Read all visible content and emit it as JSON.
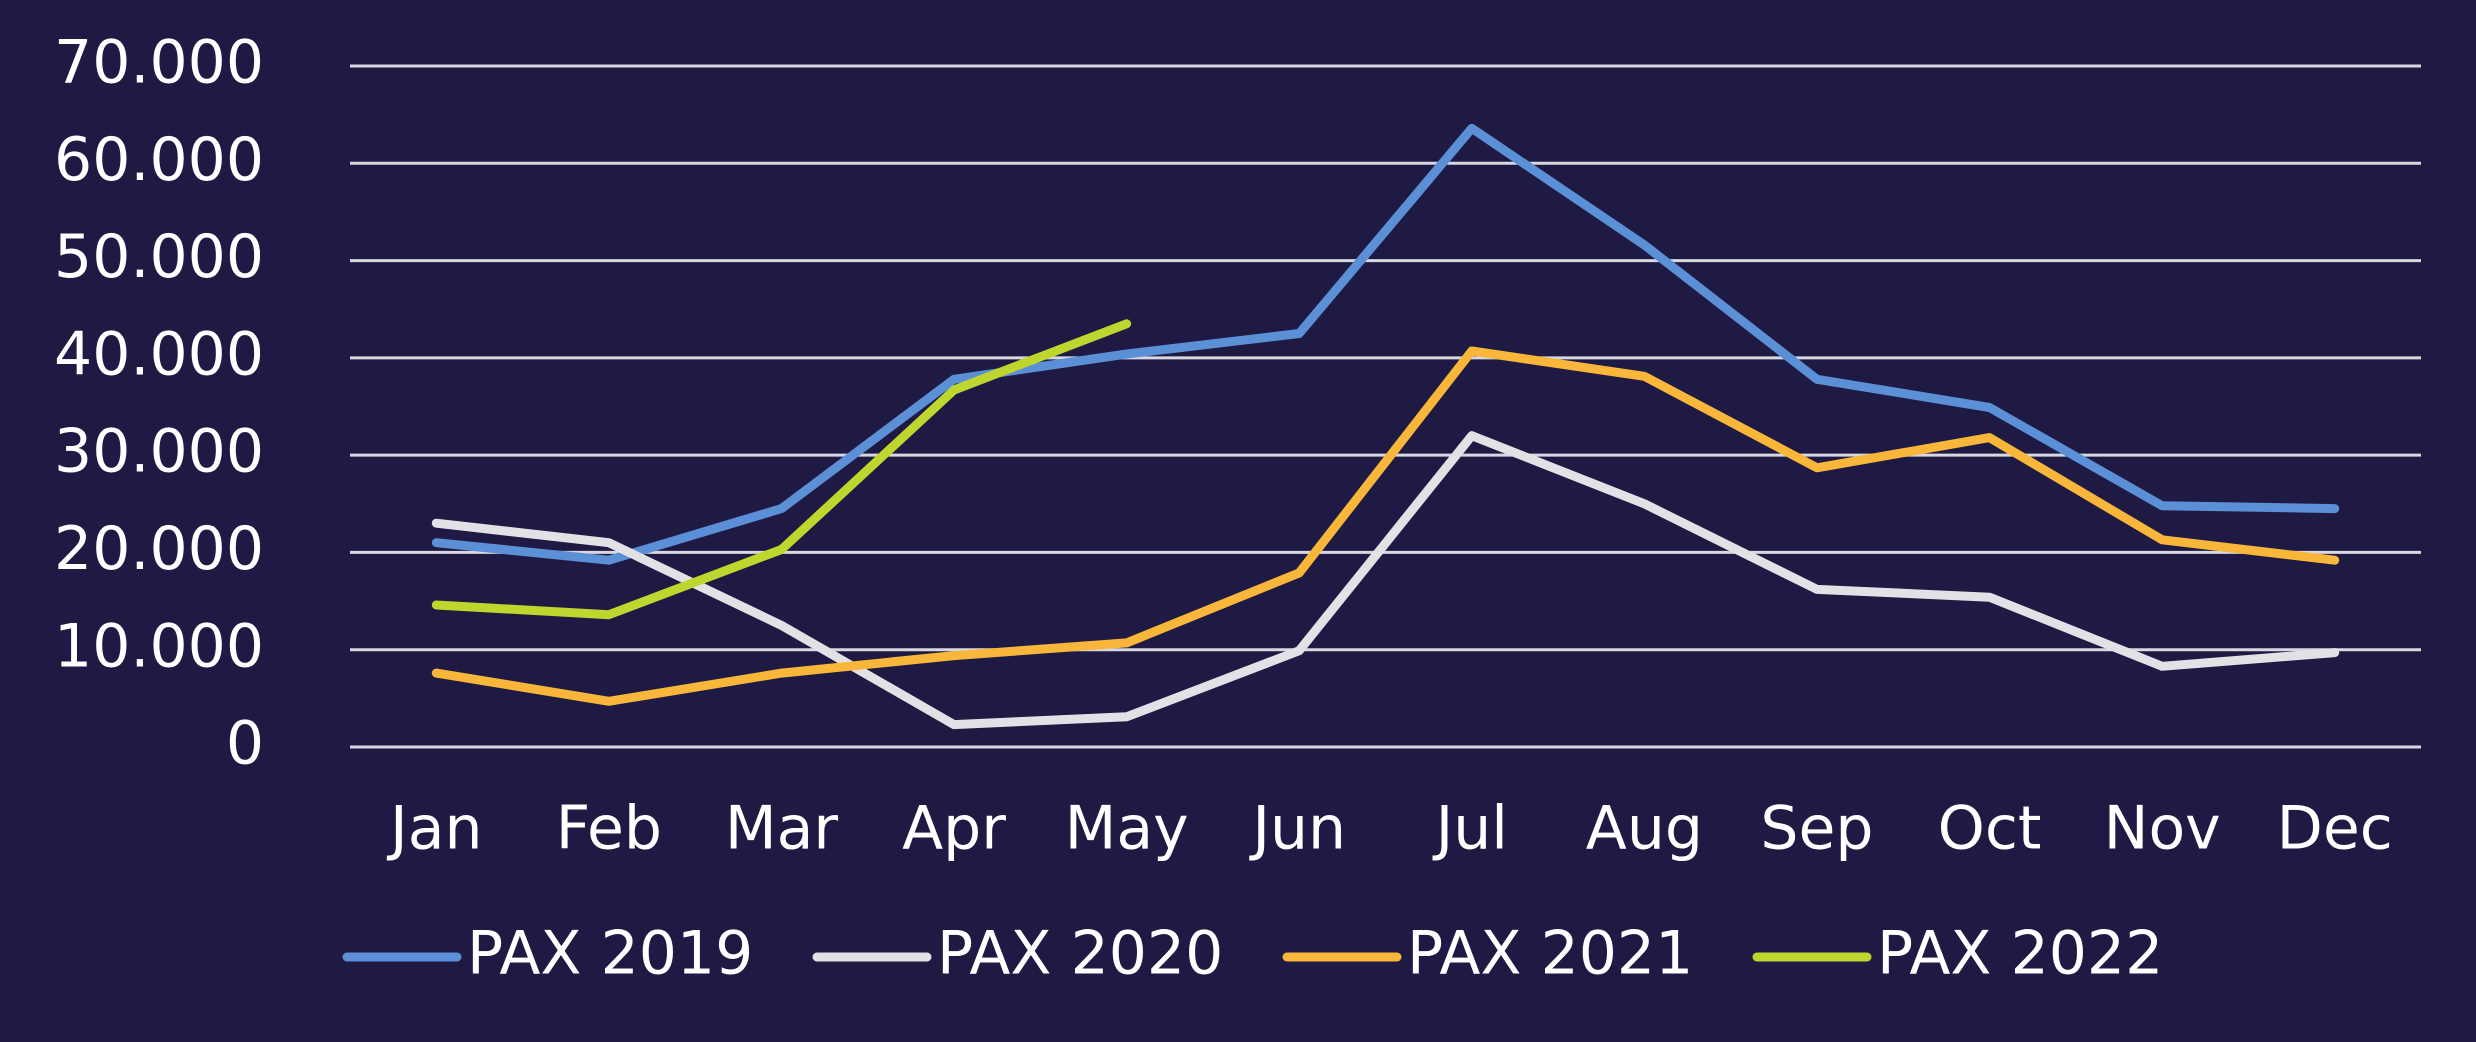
{
  "chart_data": {
    "type": "line",
    "categories": [
      "Jan",
      "Feb",
      "Mar",
      "Apr",
      "May",
      "Jun",
      "Jul",
      "Aug",
      "Sep",
      "Oct",
      "Nov",
      "Dec"
    ],
    "series": [
      {
        "name": "PAX 2019",
        "color": "#5b8fd6",
        "values": [
          21000,
          19200,
          24500,
          37800,
          40400,
          42500,
          63600,
          51600,
          37800,
          34900,
          24800,
          24500
        ]
      },
      {
        "name": "PAX 2020",
        "color": "#e2e2e6",
        "values": [
          23000,
          21000,
          12500,
          2300,
          3100,
          9900,
          32000,
          25000,
          16200,
          15400,
          8300,
          9700
        ]
      },
      {
        "name": "PAX 2021",
        "color": "#f8b73a",
        "values": [
          7600,
          4700,
          7600,
          9400,
          10700,
          17900,
          40700,
          38100,
          28700,
          31800,
          21300,
          19200
        ]
      },
      {
        "name": "PAX 2022",
        "color": "#bed62e",
        "values": [
          14600,
          13600,
          20300,
          36700,
          43500,
          null,
          null,
          null,
          null,
          null,
          null,
          null
        ]
      }
    ],
    "ylim": [
      0,
      70000
    ],
    "yticks": [
      0,
      {
        "value": 10000,
        "label": "10.000"
      },
      {
        "value": 20000,
        "label": "20.000"
      },
      {
        "value": 30000,
        "label": "30.000"
      },
      {
        "value": 40000,
        "label": "40.000"
      },
      {
        "value": 50000,
        "label": "50.000"
      },
      {
        "value": 60000,
        "label": "60.000"
      },
      {
        "value": 70000,
        "label": "70.000"
      }
    ],
    "grid": true,
    "legend": "bottom"
  }
}
